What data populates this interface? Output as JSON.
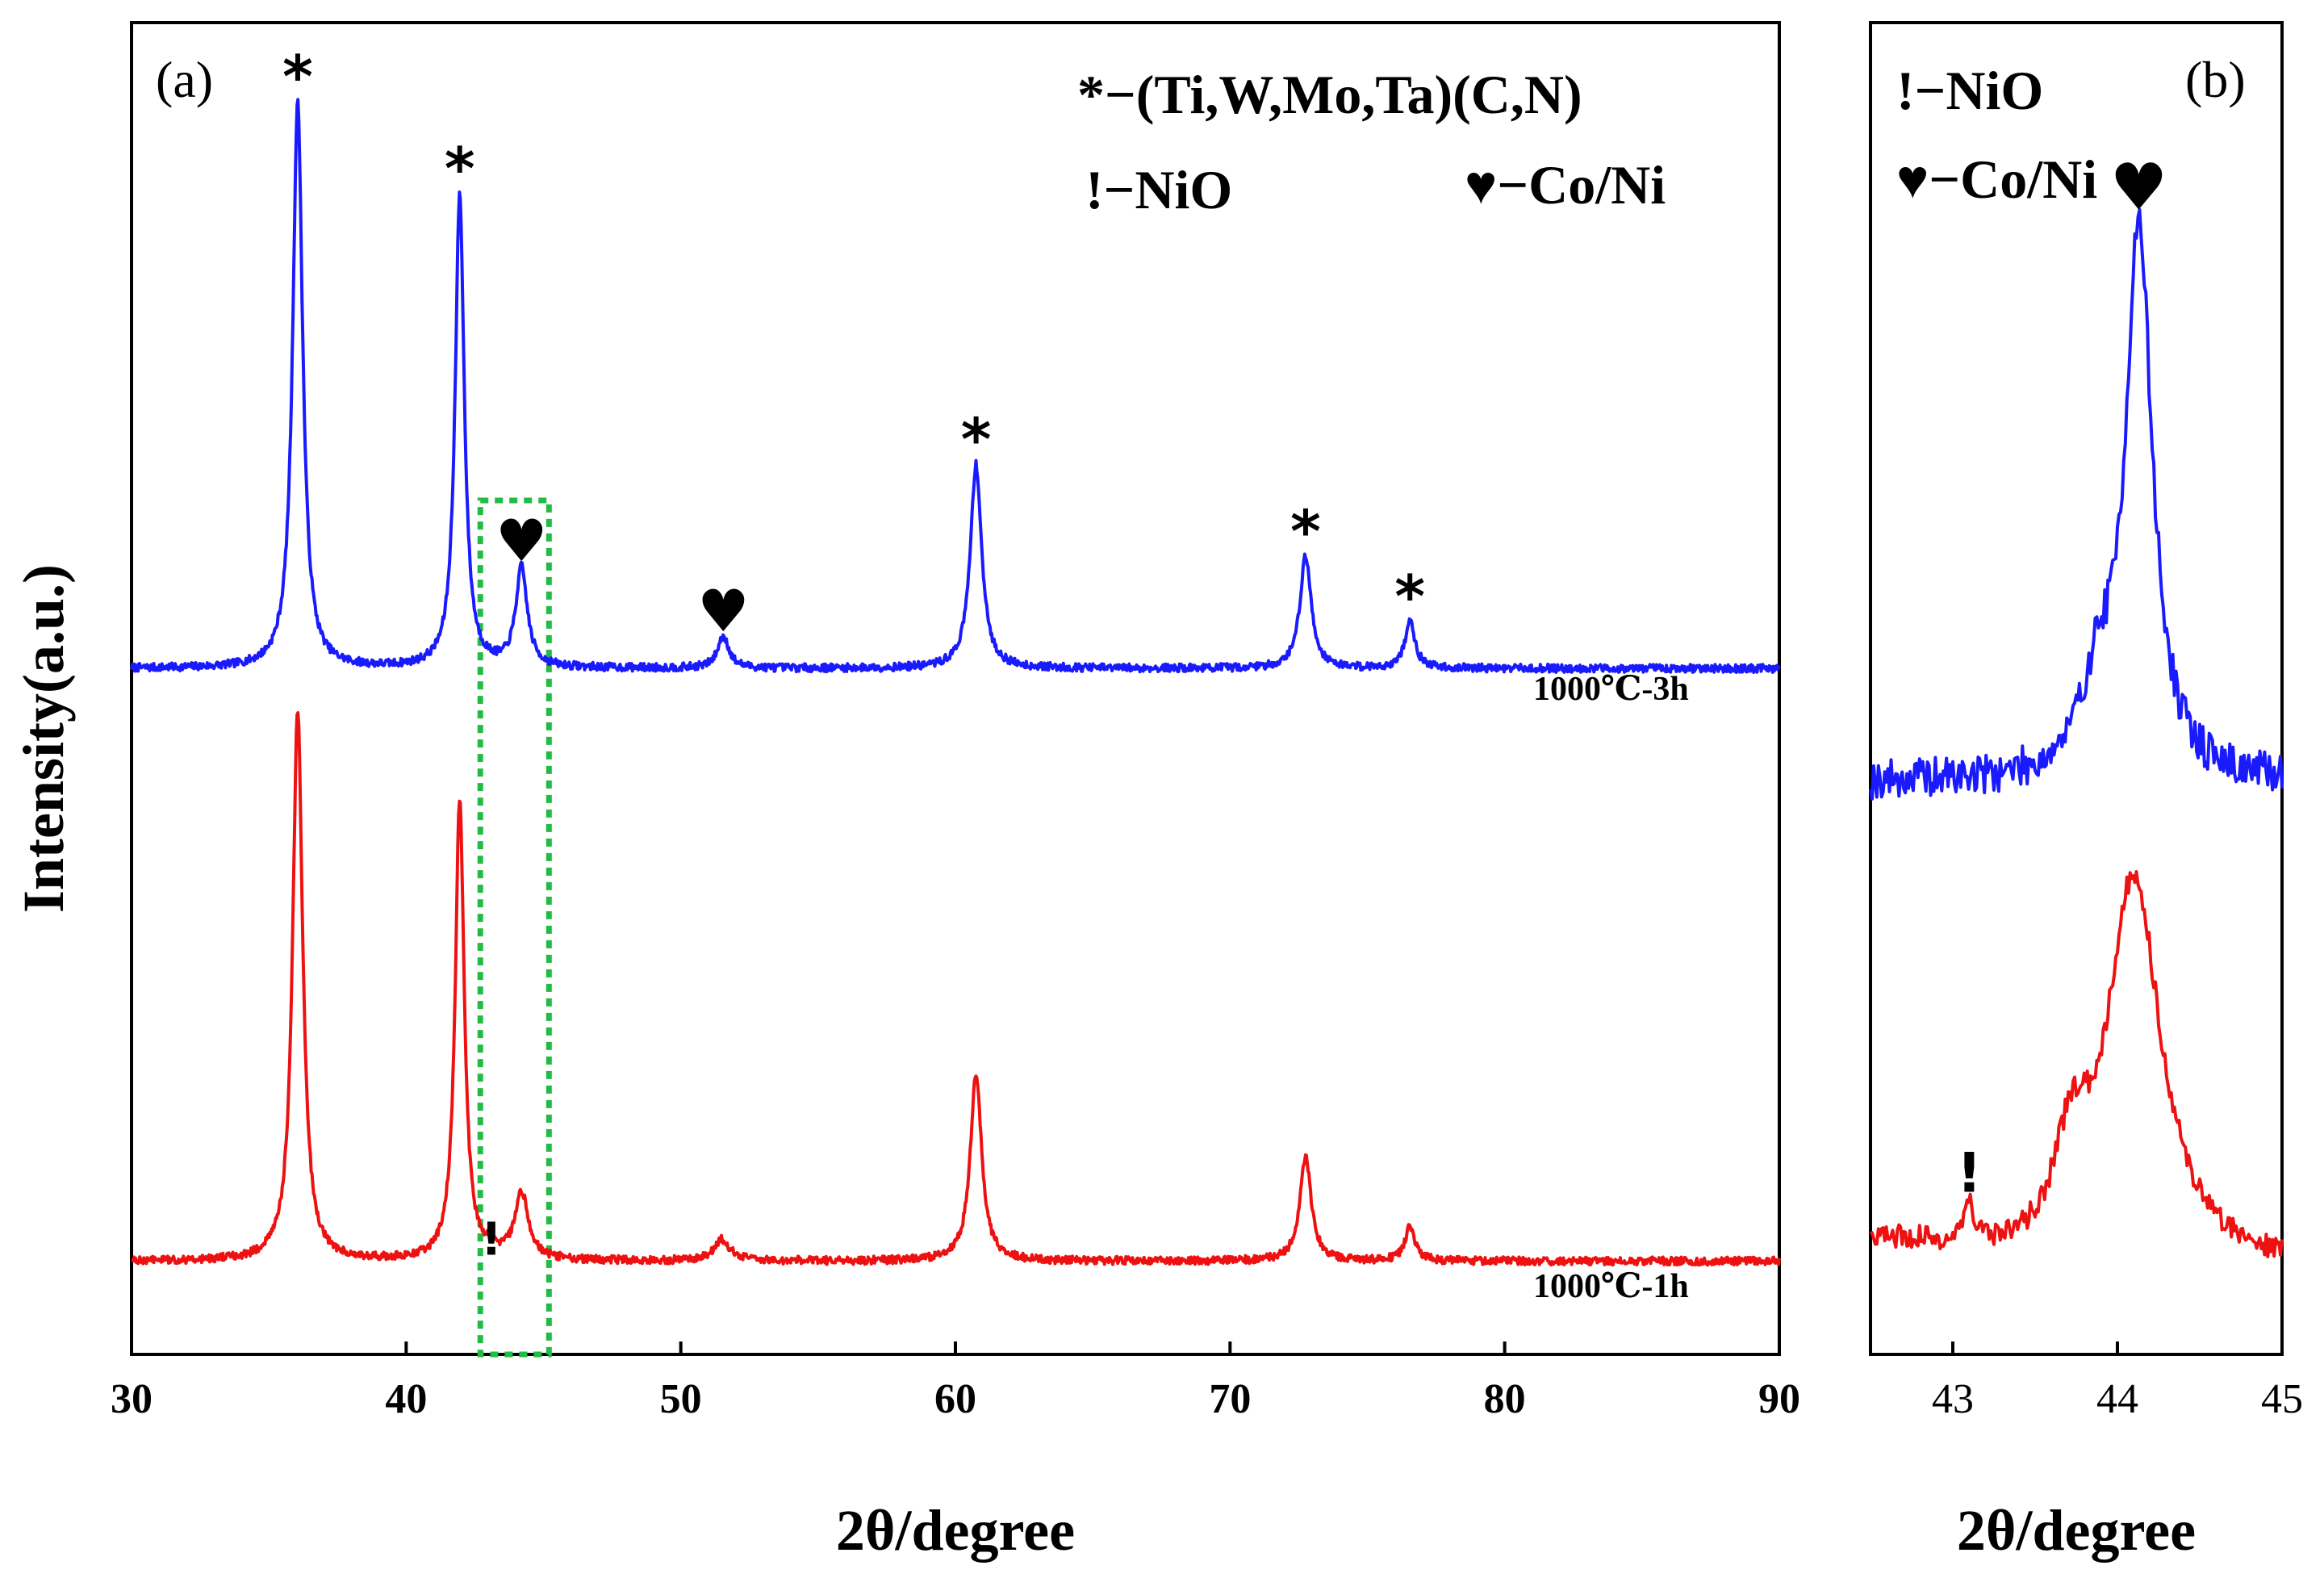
{
  "chart_data": [
    {
      "panel": "a",
      "type": "line",
      "panel_label": "(a)",
      "xlabel": "2θ/degree",
      "ylabel": "Intensity(a.u.)",
      "xlim": [
        30,
        90
      ],
      "ylim": [
        0,
        1
      ],
      "x_ticks": [
        30,
        40,
        50,
        60,
        70,
        80,
        90
      ],
      "tick_labels": [
        "30",
        "40",
        "50",
        "60",
        "70",
        "80",
        "90"
      ],
      "legend": {
        "line1": "*−(Ti,W,Mo,Ta)(C,N)",
        "line2a": "!−NiO",
        "line2b": "♥−Co/Ni"
      },
      "highlight_box": {
        "x_range": [
          42.7,
          45.2
        ],
        "color": "#22bb44",
        "style": "dotted"
      },
      "series": [
        {
          "name": "1000℃-3h",
          "label": "1000℃-3h",
          "color": "#1a1aff",
          "baseline": 0.515,
          "peaks": [
            {
              "x": 36.05,
              "h": 0.425,
              "w": 0.22,
              "marker": "*"
            },
            {
              "x": 41.95,
              "h": 0.355,
              "w": 0.2,
              "marker": "*"
            },
            {
              "x": 44.2,
              "h": 0.074,
              "w": 0.25,
              "marker": "♥"
            },
            {
              "x": 51.55,
              "h": 0.024,
              "w": 0.25,
              "marker": "♥"
            },
            {
              "x": 60.75,
              "h": 0.153,
              "w": 0.25,
              "marker": "*"
            },
            {
              "x": 72.75,
              "h": 0.084,
              "w": 0.25,
              "marker": "*"
            },
            {
              "x": 76.55,
              "h": 0.035,
              "w": 0.22,
              "marker": "*"
            }
          ]
        },
        {
          "name": "1000℃-1h",
          "label": "1000℃-1h",
          "color": "#ee1111",
          "baseline": 0.07,
          "peaks": [
            {
              "x": 36.05,
              "h": 0.415,
              "w": 0.22
            },
            {
              "x": 41.95,
              "h": 0.345,
              "w": 0.2
            },
            {
              "x": 43.1,
              "h": 0.006,
              "w": 0.2,
              "marker": "!"
            },
            {
              "x": 44.2,
              "h": 0.05,
              "w": 0.3
            },
            {
              "x": 51.5,
              "h": 0.016,
              "w": 0.35
            },
            {
              "x": 60.75,
              "h": 0.14,
              "w": 0.25
            },
            {
              "x": 72.75,
              "h": 0.078,
              "w": 0.25
            },
            {
              "x": 76.55,
              "h": 0.026,
              "w": 0.22
            }
          ]
        }
      ]
    },
    {
      "panel": "b",
      "type": "line",
      "panel_label": "(b)",
      "xlabel": "2θ/degree",
      "xlim": [
        42.5,
        45
      ],
      "ylim": [
        0,
        1
      ],
      "x_ticks": [
        43,
        44,
        45
      ],
      "tick_labels": [
        "43",
        "44",
        "45"
      ],
      "legend": {
        "line1": "!−NiO",
        "line2": "♥−Co/Ni"
      },
      "series": [
        {
          "name": "1000℃-3h",
          "color": "#1a1aff",
          "baseline": 0.43,
          "peaks": [
            {
              "x": 44.13,
              "h": 0.41,
              "w": 0.1,
              "marker": "♥"
            },
            {
              "x": 43.88,
              "h": 0.06,
              "w": 0.12
            }
          ]
        },
        {
          "name": "1000℃-1h",
          "color": "#ee1111",
          "baseline": 0.065,
          "start_level": 0.1,
          "peaks": [
            {
              "x": 44.1,
              "h": 0.29,
              "w": 0.2
            },
            {
              "x": 43.72,
              "h": 0.07,
              "w": 0.12
            },
            {
              "x": 43.1,
              "h": 0.035,
              "w": 0.03,
              "marker": "!"
            }
          ]
        }
      ]
    }
  ]
}
